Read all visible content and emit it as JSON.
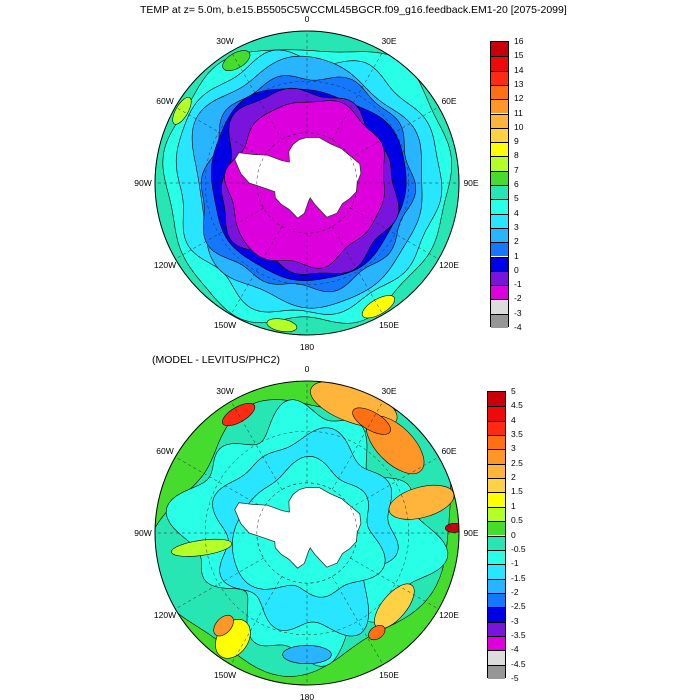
{
  "panels": [
    {
      "title": "TEMP at z=   5.0m, b.e15.B5505C5WCCML45BGCR.f09_g16.feedback.EM1-20 [2075-2099]",
      "colorbar": {
        "labels": [
          "16",
          "15",
          "14",
          "13",
          "12",
          "11",
          "10",
          "9",
          "8",
          "7",
          "6",
          "5",
          "4",
          "3",
          "2",
          "1",
          "0",
          "-1",
          "-2",
          "-3",
          "-4"
        ],
        "colors": [
          "#c8000a",
          "#ee0a0a",
          "#ff2a14",
          "#ff7014",
          "#ff9628",
          "#ffb43c",
          "#ffd246",
          "#ffff00",
          "#b4ff28",
          "#46dc2d",
          "#28e6b4",
          "#28ffe6",
          "#28e6ff",
          "#28b4ff",
          "#1478ff",
          "#0000e6",
          "#7814dc",
          "#dc00dc",
          "#dcdcdc",
          "#969696"
        ]
      }
    },
    {
      "title": "(MODEL - LEVITUS/PHC2)",
      "colorbar": {
        "labels": [
          "5",
          "4.5",
          "4",
          "3.5",
          "3",
          "2.5",
          "2",
          "1.5",
          "1",
          "0.5",
          "0",
          "-0.5",
          "-1",
          "-1.5",
          "-2",
          "-2.5",
          "-3",
          "-3.5",
          "-4",
          "-4.5",
          "-5"
        ],
        "colors": [
          "#c8000a",
          "#ee0a0a",
          "#ff2a14",
          "#ff7014",
          "#ff9628",
          "#ffb43c",
          "#ffd246",
          "#ffff00",
          "#b4ff28",
          "#46dc2d",
          "#28e6b4",
          "#28ffe6",
          "#28e6ff",
          "#28b4ff",
          "#1478ff",
          "#0000e6",
          "#7814dc",
          "#dc00dc",
          "#dcdcdc",
          "#969696"
        ]
      }
    }
  ],
  "longitude_labels": [
    "0",
    "30E",
    "60E",
    "90E",
    "120E",
    "150E",
    "180",
    "150W",
    "120W",
    "90W",
    "60W",
    "30W"
  ],
  "land_color": "#ffffff"
}
